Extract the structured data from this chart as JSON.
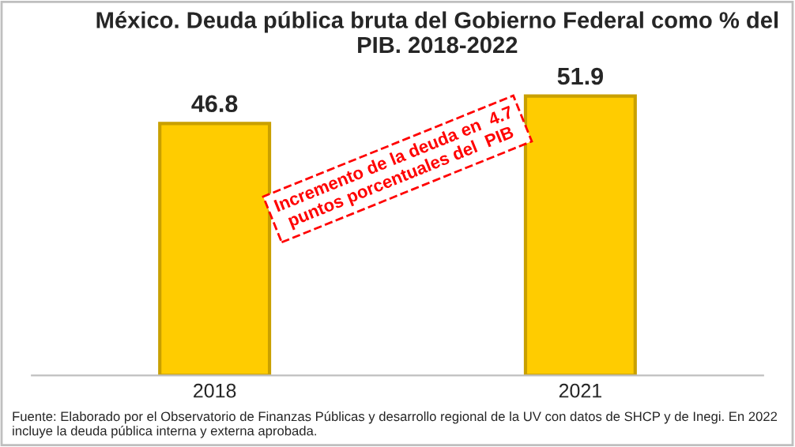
{
  "chart_data": {
    "type": "bar",
    "title": "México. Deuda pública bruta del Gobierno Federal como % del PIB. 2018-2022",
    "categories": [
      "2018",
      "2021"
    ],
    "series": [
      {
        "color": "#ffcc00",
        "values": [
          46.8,
          51.9
        ]
      }
    ],
    "tick_labels": "x",
    "data_labels": true,
    "grid": false,
    "legend": false,
    "annotations": [
      "Incremento de la deuda en  4.7\npuntos porcentuales del  PIB",
      "Fuente: Elaborado por el Observatorio de Finanzas Públicas y desarrollo regional de la UV con datos de SHCP y de Inegi. En 2022 incluye la deuda pública interna y externa aprobada."
    ]
  }
}
